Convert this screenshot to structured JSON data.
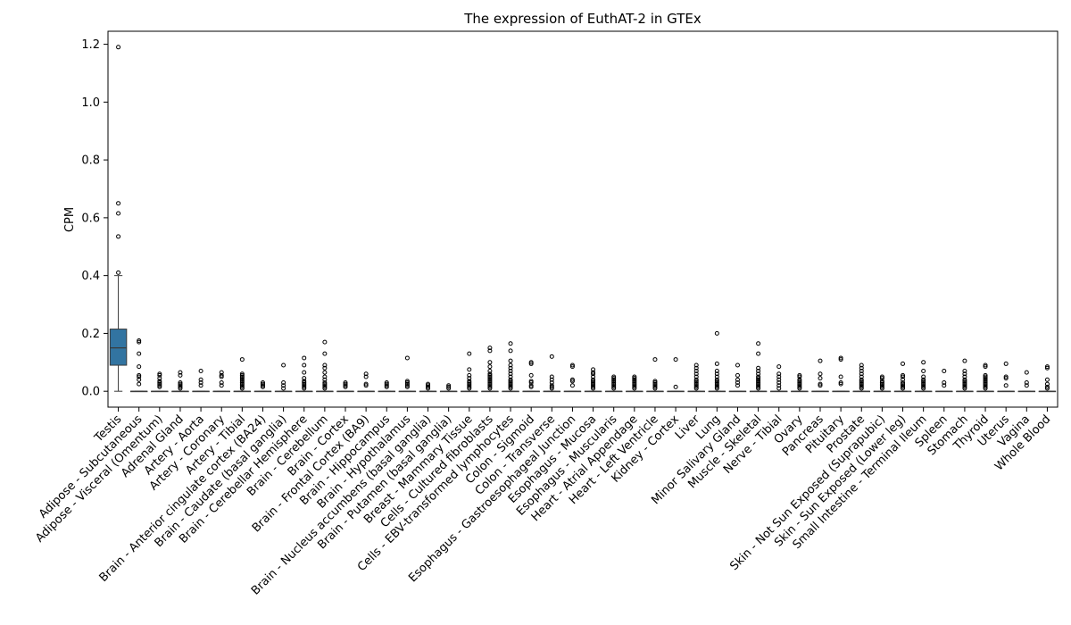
{
  "chart_data": {
    "type": "box",
    "title": "The expression of EuthAT-2 in GTEx",
    "ylabel": "CPM",
    "xlabel": "",
    "ylim": [
      -0.055,
      1.245
    ],
    "yticks": [
      0.0,
      0.2,
      0.4,
      0.6,
      0.8,
      1.0,
      1.2
    ],
    "grid": false,
    "colors": {
      "box_fill": "#3274a1",
      "line": "#3a3a3a",
      "axis": "#000000"
    },
    "categories": [
      "Testis",
      "Adipose - Subcutaneous",
      "Adipose - Visceral (Omentum)",
      "Adrenal Gland",
      "Artery - Aorta",
      "Artery - Coronary",
      "Artery - Tibial",
      "Brain - Anterior cingulate cortex (BA24)",
      "Brain - Caudate (basal ganglia)",
      "Brain - Cerebellar Hemisphere",
      "Brain - Cerebellum",
      "Brain - Cortex",
      "Brain - Frontal Cortex (BA9)",
      "Brain - Hippocampus",
      "Brain - Hypothalamus",
      "Brain - Nucleus accumbens (basal ganglia)",
      "Brain - Putamen (basal ganglia)",
      "Breast - Mammary Tissue",
      "Cells - Cultured fibroblasts",
      "Cells - EBV-transformed lymphocytes",
      "Colon - Sigmoid",
      "Colon - Transverse",
      "Esophagus - Gastroesophageal Junction",
      "Esophagus - Mucosa",
      "Esophagus - Muscularis",
      "Heart - Atrial Appendage",
      "Heart - Left Ventricle",
      "Kidney - Cortex",
      "Liver",
      "Lung",
      "Minor Salivary Gland",
      "Muscle - Skeletal",
      "Nerve - Tibial",
      "Ovary",
      "Pancreas",
      "Pituitary",
      "Prostate",
      "Skin - Not Sun Exposed (Suprapubic)",
      "Skin - Sun Exposed (Lower leg)",
      "Small Intestine - Terminal Ileum",
      "Spleen",
      "Stomach",
      "Thyroid",
      "Uterus",
      "Vagina",
      "Whole Blood"
    ],
    "boxes": [
      {
        "q1": 0.09,
        "median": 0.15,
        "q3": 0.215,
        "whislo": 0.0,
        "whishi": 0.4,
        "fliers": [
          0.41,
          0.535,
          0.615,
          0.65,
          1.19
        ]
      },
      {
        "q1": 0,
        "median": 0,
        "q3": 0,
        "whislo": 0,
        "whishi": 0,
        "fliers": [
          0.025,
          0.04,
          0.05,
          0.055,
          0.085,
          0.13,
          0.17,
          0.175
        ]
      },
      {
        "q1": 0,
        "median": 0,
        "q3": 0,
        "whislo": 0,
        "whishi": 0,
        "fliers": [
          0.015,
          0.02,
          0.025,
          0.03,
          0.035,
          0.045,
          0.055,
          0.06
        ]
      },
      {
        "q1": 0,
        "median": 0,
        "q3": 0,
        "whislo": 0,
        "whishi": 0,
        "fliers": [
          0.01,
          0.015,
          0.02,
          0.025,
          0.03,
          0.055,
          0.065
        ]
      },
      {
        "q1": 0,
        "median": 0,
        "q3": 0,
        "whislo": 0,
        "whishi": 0,
        "fliers": [
          0.02,
          0.03,
          0.04,
          0.07
        ]
      },
      {
        "q1": 0,
        "median": 0,
        "q3": 0,
        "whislo": 0,
        "whishi": 0,
        "fliers": [
          0.02,
          0.03,
          0.05,
          0.055,
          0.065
        ]
      },
      {
        "q1": 0,
        "median": 0,
        "q3": 0,
        "whislo": 0,
        "whishi": 0,
        "fliers": [
          0.01,
          0.015,
          0.02,
          0.025,
          0.03,
          0.035,
          0.04,
          0.045,
          0.05,
          0.055,
          0.06,
          0.11
        ]
      },
      {
        "q1": 0,
        "median": 0,
        "q3": 0,
        "whislo": 0,
        "whishi": 0,
        "fliers": [
          0.015,
          0.02,
          0.025,
          0.03
        ]
      },
      {
        "q1": 0,
        "median": 0,
        "q3": 0,
        "whislo": 0,
        "whishi": 0,
        "fliers": [
          0.01,
          0.02,
          0.03,
          0.09
        ]
      },
      {
        "q1": 0,
        "median": 0,
        "q3": 0,
        "whislo": 0,
        "whishi": 0,
        "fliers": [
          0.01,
          0.015,
          0.02,
          0.025,
          0.03,
          0.035,
          0.045,
          0.065,
          0.09,
          0.115
        ]
      },
      {
        "q1": 0,
        "median": 0,
        "q3": 0,
        "whislo": 0,
        "whishi": 0,
        "fliers": [
          0.01,
          0.015,
          0.02,
          0.025,
          0.03,
          0.04,
          0.05,
          0.065,
          0.08,
          0.09,
          0.13,
          0.17
        ]
      },
      {
        "q1": 0,
        "median": 0,
        "q3": 0,
        "whislo": 0,
        "whishi": 0,
        "fliers": [
          0.015,
          0.02,
          0.025,
          0.03
        ]
      },
      {
        "q1": 0,
        "median": 0,
        "q3": 0,
        "whislo": 0,
        "whishi": 0,
        "fliers": [
          0.02,
          0.025,
          0.05,
          0.06
        ]
      },
      {
        "q1": 0,
        "median": 0,
        "q3": 0,
        "whislo": 0,
        "whishi": 0,
        "fliers": [
          0.015,
          0.02,
          0.025,
          0.03
        ]
      },
      {
        "q1": 0,
        "median": 0,
        "q3": 0,
        "whislo": 0,
        "whishi": 0,
        "fliers": [
          0.015,
          0.02,
          0.025,
          0.03,
          0.035,
          0.115
        ]
      },
      {
        "q1": 0,
        "median": 0,
        "q3": 0,
        "whislo": 0,
        "whishi": 0,
        "fliers": [
          0.01,
          0.015,
          0.02,
          0.025
        ]
      },
      {
        "q1": 0,
        "median": 0,
        "q3": 0,
        "whislo": 0,
        "whishi": 0,
        "fliers": [
          0.01,
          0.015,
          0.02
        ]
      },
      {
        "q1": 0,
        "median": 0,
        "q3": 0,
        "whislo": 0,
        "whishi": 0,
        "fliers": [
          0.01,
          0.015,
          0.02,
          0.025,
          0.03,
          0.035,
          0.045,
          0.055,
          0.075,
          0.13
        ]
      },
      {
        "q1": 0,
        "median": 0,
        "q3": 0,
        "whislo": 0,
        "whishi": 0,
        "fliers": [
          0.01,
          0.015,
          0.02,
          0.025,
          0.03,
          0.035,
          0.04,
          0.045,
          0.05,
          0.055,
          0.06,
          0.07,
          0.085,
          0.1,
          0.14,
          0.15
        ]
      },
      {
        "q1": 0,
        "median": 0,
        "q3": 0,
        "whislo": 0,
        "whishi": 0,
        "fliers": [
          0.01,
          0.015,
          0.02,
          0.025,
          0.03,
          0.035,
          0.04,
          0.05,
          0.06,
          0.07,
          0.08,
          0.09,
          0.105,
          0.14,
          0.165
        ]
      },
      {
        "q1": 0,
        "median": 0,
        "q3": 0,
        "whislo": 0,
        "whishi": 0,
        "fliers": [
          0.015,
          0.02,
          0.03,
          0.035,
          0.055,
          0.095,
          0.1
        ]
      },
      {
        "q1": 0,
        "median": 0,
        "q3": 0,
        "whislo": 0,
        "whishi": 0,
        "fliers": [
          0.01,
          0.015,
          0.02,
          0.03,
          0.04,
          0.05,
          0.12
        ]
      },
      {
        "q1": 0,
        "median": 0,
        "q3": 0,
        "whislo": 0,
        "whishi": 0,
        "fliers": [
          0.02,
          0.035,
          0.04,
          0.085,
          0.09
        ]
      },
      {
        "q1": 0,
        "median": 0,
        "q3": 0,
        "whislo": 0,
        "whishi": 0,
        "fliers": [
          0.01,
          0.015,
          0.02,
          0.025,
          0.03,
          0.035,
          0.04,
          0.05,
          0.06,
          0.065,
          0.075
        ]
      },
      {
        "q1": 0,
        "median": 0,
        "q3": 0,
        "whislo": 0,
        "whishi": 0,
        "fliers": [
          0.01,
          0.015,
          0.02,
          0.025,
          0.03,
          0.035,
          0.04,
          0.045,
          0.05
        ]
      },
      {
        "q1": 0,
        "median": 0,
        "q3": 0,
        "whislo": 0,
        "whishi": 0,
        "fliers": [
          0.01,
          0.015,
          0.02,
          0.025,
          0.03,
          0.035,
          0.04,
          0.045,
          0.05
        ]
      },
      {
        "q1": 0,
        "median": 0,
        "q3": 0,
        "whislo": 0,
        "whishi": 0,
        "fliers": [
          0.01,
          0.015,
          0.02,
          0.025,
          0.03,
          0.035,
          0.11
        ]
      },
      {
        "q1": 0,
        "median": 0,
        "q3": 0,
        "whislo": 0,
        "whishi": 0,
        "fliers": [
          0.015,
          0.11
        ]
      },
      {
        "q1": 0,
        "median": 0,
        "q3": 0,
        "whislo": 0,
        "whishi": 0,
        "fliers": [
          0.01,
          0.015,
          0.02,
          0.025,
          0.03,
          0.035,
          0.04,
          0.05,
          0.06,
          0.07,
          0.08,
          0.09
        ]
      },
      {
        "q1": 0,
        "median": 0,
        "q3": 0,
        "whislo": 0,
        "whishi": 0,
        "fliers": [
          0.01,
          0.015,
          0.02,
          0.025,
          0.03,
          0.035,
          0.04,
          0.05,
          0.06,
          0.07,
          0.095,
          0.2
        ]
      },
      {
        "q1": 0,
        "median": 0,
        "q3": 0,
        "whislo": 0,
        "whishi": 0,
        "fliers": [
          0.02,
          0.03,
          0.04,
          0.055,
          0.09
        ]
      },
      {
        "q1": 0,
        "median": 0,
        "q3": 0,
        "whislo": 0,
        "whishi": 0,
        "fliers": [
          0.01,
          0.015,
          0.02,
          0.025,
          0.03,
          0.035,
          0.04,
          0.045,
          0.05,
          0.06,
          0.07,
          0.08,
          0.13,
          0.165
        ]
      },
      {
        "q1": 0,
        "median": 0,
        "q3": 0,
        "whislo": 0,
        "whishi": 0,
        "fliers": [
          0.01,
          0.02,
          0.03,
          0.04,
          0.05,
          0.06,
          0.085
        ]
      },
      {
        "q1": 0,
        "median": 0,
        "q3": 0,
        "whislo": 0,
        "whishi": 0,
        "fliers": [
          0.01,
          0.015,
          0.02,
          0.025,
          0.03,
          0.035,
          0.04,
          0.05,
          0.055
        ]
      },
      {
        "q1": 0,
        "median": 0,
        "q3": 0,
        "whislo": 0,
        "whishi": 0,
        "fliers": [
          0.02,
          0.025,
          0.045,
          0.06,
          0.105
        ]
      },
      {
        "q1": 0,
        "median": 0,
        "q3": 0,
        "whislo": 0,
        "whishi": 0,
        "fliers": [
          0.025,
          0.03,
          0.05,
          0.11,
          0.115
        ]
      },
      {
        "q1": 0,
        "median": 0,
        "q3": 0,
        "whislo": 0,
        "whishi": 0,
        "fliers": [
          0.01,
          0.015,
          0.02,
          0.025,
          0.03,
          0.035,
          0.04,
          0.05,
          0.06,
          0.07,
          0.08,
          0.09
        ]
      },
      {
        "q1": 0,
        "median": 0,
        "q3": 0,
        "whislo": 0,
        "whishi": 0,
        "fliers": [
          0.01,
          0.015,
          0.02,
          0.025,
          0.03,
          0.035,
          0.045,
          0.05
        ]
      },
      {
        "q1": 0,
        "median": 0,
        "q3": 0,
        "whislo": 0,
        "whishi": 0,
        "fliers": [
          0.01,
          0.015,
          0.02,
          0.025,
          0.03,
          0.04,
          0.05,
          0.055,
          0.095
        ]
      },
      {
        "q1": 0,
        "median": 0,
        "q3": 0,
        "whislo": 0,
        "whishi": 0,
        "fliers": [
          0.01,
          0.015,
          0.02,
          0.025,
          0.03,
          0.035,
          0.04,
          0.05,
          0.07,
          0.1
        ]
      },
      {
        "q1": 0,
        "median": 0,
        "q3": 0,
        "whislo": 0,
        "whishi": 0,
        "fliers": [
          0.02,
          0.03,
          0.07
        ]
      },
      {
        "q1": 0,
        "median": 0,
        "q3": 0,
        "whislo": 0,
        "whishi": 0,
        "fliers": [
          0.01,
          0.015,
          0.02,
          0.025,
          0.03,
          0.035,
          0.04,
          0.05,
          0.06,
          0.07,
          0.105
        ]
      },
      {
        "q1": 0,
        "median": 0,
        "q3": 0,
        "whislo": 0,
        "whishi": 0,
        "fliers": [
          0.01,
          0.015,
          0.02,
          0.025,
          0.03,
          0.035,
          0.04,
          0.045,
          0.05,
          0.055,
          0.085,
          0.09
        ]
      },
      {
        "q1": 0,
        "median": 0,
        "q3": 0,
        "whislo": 0,
        "whishi": 0,
        "fliers": [
          0.02,
          0.045,
          0.05,
          0.095
        ]
      },
      {
        "q1": 0,
        "median": 0,
        "q3": 0,
        "whislo": 0,
        "whishi": 0,
        "fliers": [
          0.02,
          0.03,
          0.065
        ]
      },
      {
        "q1": 0,
        "median": 0,
        "q3": 0,
        "whislo": 0,
        "whishi": 0,
        "fliers": [
          0.01,
          0.015,
          0.025,
          0.04,
          0.08,
          0.085
        ]
      }
    ]
  }
}
